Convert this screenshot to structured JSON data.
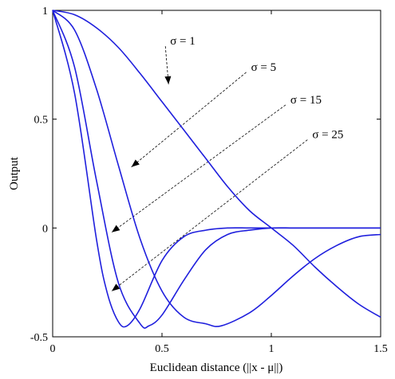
{
  "chart_data": {
    "type": "line",
    "title": "",
    "xlabel": "Euclidean distance (||x - μ||)",
    "ylabel": "Output",
    "xlim": [
      0,
      1.5
    ],
    "ylim": [
      -0.5,
      1
    ],
    "xticks": [
      "0",
      "0.5",
      "1",
      "1.5"
    ],
    "yticks": [
      "-0.5",
      "0",
      "0.5",
      "1"
    ],
    "grid": false,
    "line_color": "#1f1fdd",
    "annotations": [
      {
        "label": "σ = 1",
        "x": 0.53,
        "y": 0.85,
        "arrow_to": [
          0.53,
          0.66
        ]
      },
      {
        "label": "σ = 5",
        "x": 0.9,
        "y": 0.73,
        "arrow_to": [
          0.36,
          0.28
        ]
      },
      {
        "label": "σ = 15",
        "x": 1.08,
        "y": 0.58,
        "arrow_to": [
          0.27,
          -0.02
        ]
      },
      {
        "label": "σ = 25",
        "x": 1.18,
        "y": 0.42,
        "arrow_to": [
          0.27,
          -0.29
        ]
      }
    ],
    "series": [
      {
        "sigma": 1,
        "x": [
          0,
          0.1,
          0.2,
          0.3,
          0.4,
          0.5,
          0.6,
          0.7,
          0.8,
          0.9,
          1.0,
          1.1,
          1.2,
          1.3,
          1.4,
          1.5
        ],
        "values": [
          1,
          0.98,
          0.92,
          0.83,
          0.71,
          0.58,
          0.45,
          0.32,
          0.19,
          0.08,
          0,
          -0.08,
          -0.18,
          -0.27,
          -0.35,
          -0.41
        ]
      },
      {
        "sigma": 5,
        "x": [
          0,
          0.1,
          0.2,
          0.3,
          0.4,
          0.5,
          0.6,
          0.7,
          0.77,
          0.9,
          1.0,
          1.1,
          1.2,
          1.3,
          1.4,
          1.5
        ],
        "values": [
          1,
          0.91,
          0.64,
          0.29,
          -0.05,
          -0.29,
          -0.41,
          -0.44,
          -0.45,
          -0.39,
          -0.31,
          -0.22,
          -0.14,
          -0.08,
          -0.04,
          -0.03
        ]
      },
      {
        "sigma": 15,
        "x": [
          0,
          0.1,
          0.2,
          0.3,
          0.4,
          0.44,
          0.5,
          0.6,
          0.7,
          0.8,
          0.9,
          1.0,
          1.1,
          1.2,
          1.3,
          1.4,
          1.5
        ],
        "values": [
          1,
          0.74,
          0.22,
          -0.25,
          -0.44,
          -0.45,
          -0.4,
          -0.24,
          -0.1,
          -0.03,
          -0.01,
          0,
          0,
          0,
          0,
          0,
          0
        ]
      },
      {
        "sigma": 25,
        "x": [
          0,
          0.1,
          0.2,
          0.25,
          0.3,
          0.34,
          0.4,
          0.5,
          0.6,
          0.7,
          0.8,
          0.9,
          1.0,
          1.1,
          1.2,
          1.3,
          1.4,
          1.5
        ],
        "values": [
          1,
          0.62,
          -0.05,
          -0.3,
          -0.43,
          -0.45,
          -0.37,
          -0.15,
          -0.04,
          -0.01,
          0,
          0,
          0,
          0,
          0,
          0,
          0,
          0
        ]
      }
    ]
  }
}
